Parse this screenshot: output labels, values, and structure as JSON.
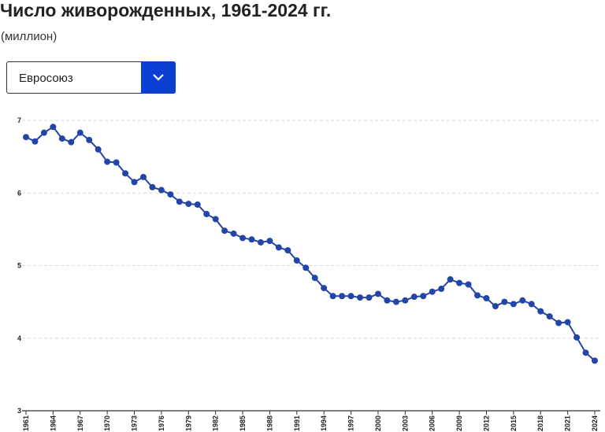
{
  "chart_data": {
    "type": "line",
    "title": "Число живорожденных, 1961-2024 гг.",
    "subtitle": "(миллион)",
    "selector": "Евросоюз",
    "x": [
      1961,
      1962,
      1963,
      1964,
      1965,
      1966,
      1967,
      1968,
      1969,
      1970,
      1971,
      1972,
      1973,
      1974,
      1975,
      1976,
      1977,
      1978,
      1979,
      1980,
      1981,
      1982,
      1983,
      1984,
      1985,
      1986,
      1987,
      1988,
      1989,
      1990,
      1991,
      1992,
      1993,
      1994,
      1995,
      1996,
      1997,
      1998,
      1999,
      2000,
      2001,
      2002,
      2003,
      2004,
      2005,
      2006,
      2007,
      2008,
      2009,
      2010,
      2011,
      2012,
      2013,
      2014,
      2015,
      2016,
      2017,
      2018,
      2019,
      2020,
      2021,
      2022,
      2023,
      2024
    ],
    "series": [
      {
        "name": "Евросоюз",
        "color": "#2445a8",
        "values": [
          6.77,
          6.71,
          6.83,
          6.91,
          6.75,
          6.7,
          6.83,
          6.73,
          6.6,
          6.43,
          6.42,
          6.27,
          6.15,
          6.22,
          6.08,
          6.04,
          5.98,
          5.88,
          5.85,
          5.84,
          5.71,
          5.64,
          5.48,
          5.44,
          5.38,
          5.36,
          5.32,
          5.34,
          5.25,
          5.21,
          5.07,
          4.97,
          4.83,
          4.69,
          4.58,
          4.58,
          4.58,
          4.56,
          4.56,
          4.61,
          4.52,
          4.5,
          4.52,
          4.57,
          4.58,
          4.64,
          4.68,
          4.81,
          4.76,
          4.74,
          4.59,
          4.55,
          4.44,
          4.5,
          4.47,
          4.52,
          4.47,
          4.37,
          4.3,
          4.21,
          4.22,
          4.01,
          3.8,
          3.69
        ]
      }
    ],
    "xlim": [
      1961,
      2024
    ],
    "xticks": [
      1961,
      1964,
      1967,
      1970,
      1973,
      1976,
      1979,
      1982,
      1985,
      1988,
      1991,
      1994,
      1997,
      2000,
      2003,
      2006,
      2009,
      2012,
      2015,
      2018,
      2021,
      2024
    ],
    "ylim": [
      3,
      7
    ],
    "yticks": [
      3,
      4,
      5,
      6,
      7
    ],
    "grid": true
  }
}
